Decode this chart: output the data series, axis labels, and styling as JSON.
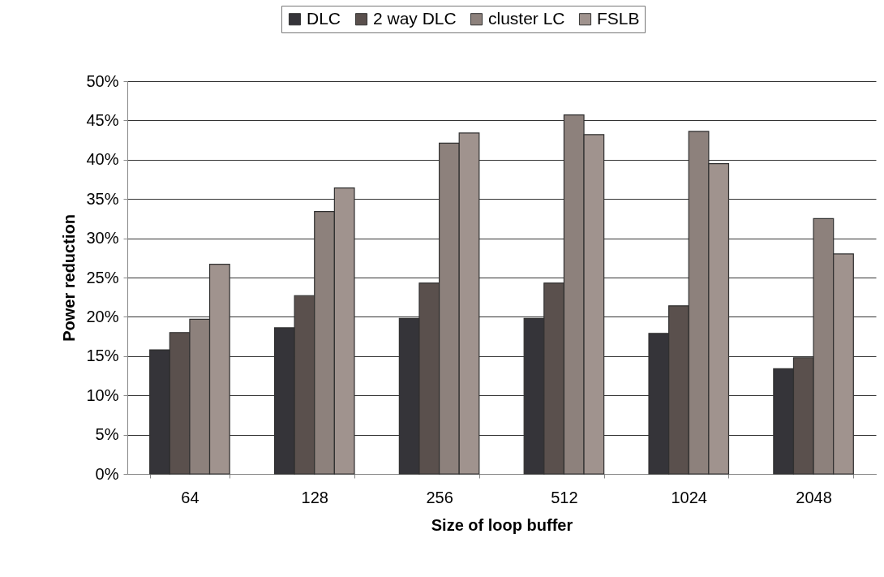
{
  "chart_data": {
    "type": "bar",
    "xlabel": "Size of loop buffer",
    "ylabel": "Power reduction",
    "categories": [
      "64",
      "128",
      "256",
      "512",
      "1024",
      "2048"
    ],
    "series": [
      {
        "name": "DLC",
        "color": "#353439",
        "values": [
          15.8,
          18.6,
          19.8,
          19.8,
          17.9,
          13.4
        ]
      },
      {
        "name": "2 way DLC",
        "color": "#5a504d",
        "values": [
          18.0,
          22.7,
          24.3,
          24.3,
          21.4,
          14.8
        ]
      },
      {
        "name": "cluster LC",
        "color": "#8d817c",
        "values": [
          19.7,
          33.4,
          42.1,
          45.7,
          43.6,
          32.5
        ]
      },
      {
        "name": "FSLB",
        "color": "#a0938e",
        "values": [
          26.7,
          36.4,
          43.4,
          43.2,
          39.5,
          28.0
        ]
      }
    ],
    "ylim": [
      0,
      50
    ],
    "yticks": [
      {
        "value": 0,
        "label": "0%"
      },
      {
        "value": 5,
        "label": "5%"
      },
      {
        "value": 10,
        "label": "10%"
      },
      {
        "value": 15,
        "label": "15%"
      },
      {
        "value": 20,
        "label": "20%"
      },
      {
        "value": 25,
        "label": "25%"
      },
      {
        "value": 30,
        "label": "30%"
      },
      {
        "value": 35,
        "label": "35%"
      },
      {
        "value": 40,
        "label": "40%"
      },
      {
        "value": 45,
        "label": "45%"
      },
      {
        "value": 50,
        "label": "50%"
      }
    ],
    "grid": "y",
    "legend": "top"
  }
}
